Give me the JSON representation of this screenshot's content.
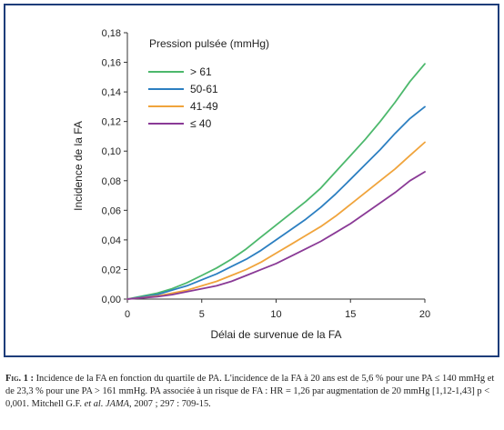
{
  "chart_data": {
    "type": "line",
    "xlabel": "Délai de survenue de la FA",
    "ylabel": "Incidence de la FA",
    "xlim": [
      0,
      20
    ],
    "ylim": [
      0,
      0.18
    ],
    "xticks": [
      0,
      5,
      10,
      15,
      20
    ],
    "xtick_labels": [
      "0",
      "5",
      "10",
      "15",
      "20"
    ],
    "yticks": [
      0,
      0.02,
      0.04,
      0.06,
      0.08,
      0.1,
      0.12,
      0.14,
      0.16,
      0.18
    ],
    "ytick_labels": [
      "0,00",
      "0,02",
      "0,04",
      "0,06",
      "0,08",
      "0,10",
      "0,12",
      "0,14",
      "0,16",
      "0,18"
    ],
    "grid": false,
    "legend_title": "Pression pulsée (mmHg)",
    "legend_position": "top-left",
    "series": [
      {
        "name": "> 61",
        "color": "#4cb86c",
        "x": [
          0,
          1,
          2,
          3,
          4,
          5,
          6,
          7,
          8,
          9,
          10,
          11,
          12,
          13,
          14,
          15,
          16,
          17,
          18,
          19,
          20
        ],
        "y": [
          0,
          0.002,
          0.004,
          0.007,
          0.011,
          0.016,
          0.021,
          0.027,
          0.034,
          0.042,
          0.05,
          0.058,
          0.066,
          0.075,
          0.086,
          0.097,
          0.108,
          0.12,
          0.133,
          0.147,
          0.159
        ]
      },
      {
        "name": "50-61",
        "color": "#2c7fc1",
        "x": [
          0,
          1,
          2,
          3,
          4,
          5,
          6,
          7,
          8,
          9,
          10,
          11,
          12,
          13,
          14,
          15,
          16,
          17,
          18,
          19,
          20
        ],
        "y": [
          0,
          0.0015,
          0.003,
          0.006,
          0.009,
          0.013,
          0.017,
          0.022,
          0.027,
          0.033,
          0.04,
          0.047,
          0.054,
          0.062,
          0.071,
          0.081,
          0.091,
          0.101,
          0.112,
          0.122,
          0.13
        ]
      },
      {
        "name": "41-49",
        "color": "#f0a43c",
        "x": [
          0,
          1,
          2,
          3,
          4,
          5,
          6,
          7,
          8,
          9,
          10,
          11,
          12,
          13,
          14,
          15,
          16,
          17,
          18,
          19,
          20
        ],
        "y": [
          0,
          0.001,
          0.002,
          0.004,
          0.006,
          0.009,
          0.012,
          0.016,
          0.02,
          0.025,
          0.031,
          0.037,
          0.043,
          0.049,
          0.056,
          0.064,
          0.072,
          0.08,
          0.088,
          0.097,
          0.106
        ]
      },
      {
        "name": "≤ 40",
        "color": "#8a3a96",
        "x": [
          0,
          1,
          2,
          3,
          4,
          5,
          6,
          7,
          8,
          9,
          10,
          11,
          12,
          13,
          14,
          15,
          16,
          17,
          18,
          19,
          20
        ],
        "y": [
          0,
          0.0008,
          0.0016,
          0.003,
          0.005,
          0.007,
          0.009,
          0.012,
          0.016,
          0.02,
          0.024,
          0.029,
          0.034,
          0.039,
          0.045,
          0.051,
          0.058,
          0.065,
          0.072,
          0.08,
          0.086
        ]
      }
    ]
  },
  "caption": {
    "fig_label": "Fig. 1 :",
    "text_1": "Incidence de la FA en fonction du quartile de PA. L'incidence de la FA à 20 ans est de 5,6 % pour une PA ≤ 140 mmHg et de 23,3 % pour une PA > 161 mmHg. PA associée à un risque de FA : HR = 1,26 par augmentation de 20 mmHg [1,12-1,43] p < 0,001. Mitchell G.F.",
    "et_al": "et al.",
    "journal": "JAMA",
    "text_2": ", 2007 ; 297 : 709-15."
  }
}
